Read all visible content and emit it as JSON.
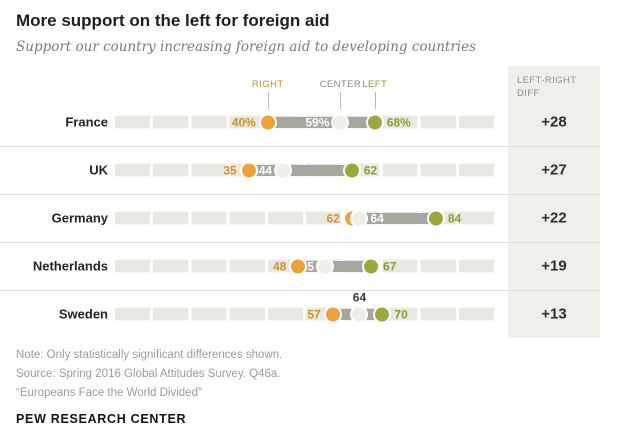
{
  "header": {
    "title": "More support on the left for foreign aid",
    "subtitle": "Support our country increasing foreign aid to developing countries"
  },
  "diff_header": {
    "line1": "LEFT-RIGHT",
    "line2": "DIFF"
  },
  "legend": {
    "right": "RIGHT",
    "center": "CENTER",
    "left": "LEFT"
  },
  "colors": {
    "right_dot": "#ECA23B",
    "center_dot": "#EFEDE8",
    "left_dot": "#9DA741",
    "right_text": "#CE8F2C",
    "left_text": "#8D9A31",
    "center_text_on_bar": "#FFFFFF",
    "center_text_outside": "#3C3C3C",
    "connector": "#A6A69F",
    "band_stripe": "#EAE8E2",
    "diff_column_bg": "#F1EFE9",
    "legend_right": "#CE8F2C",
    "legend_center": "#8A8A84",
    "legend_left": "#8D9A31"
  },
  "chart_data": {
    "type": "dot-plot",
    "title": "More support on the left for foreign aid",
    "subtitle": "Support our country increasing foreign aid to developing countries",
    "scale": [
      0,
      100
    ],
    "categories": [
      "France",
      "UK",
      "Germany",
      "Netherlands",
      "Sweden"
    ],
    "series": [
      {
        "name": "Right",
        "values": [
          40,
          35,
          62,
          48,
          57
        ]
      },
      {
        "name": "Center",
        "values": [
          59,
          44,
          64,
          55,
          64
        ]
      },
      {
        "name": "Left",
        "values": [
          68,
          62,
          84,
          67,
          70
        ]
      }
    ],
    "value_labels": {
      "right": [
        "40%",
        "35",
        "62",
        "48",
        "57"
      ],
      "center": [
        "59%",
        "44",
        "64",
        "55",
        "64"
      ],
      "left": [
        "68%",
        "62",
        "84",
        "67",
        "70"
      ]
    },
    "diff_label": "LEFT-RIGHT DIFF",
    "diff": [
      "+28",
      "+27",
      "+22",
      "+19",
      "+13"
    ],
    "center_label_side": [
      "left",
      "left",
      "right",
      "left",
      "above"
    ],
    "legend_row": "France"
  },
  "footer": {
    "note": "Note: Only statistically significant differences shown.",
    "source": "Source: Spring 2016 Global Attitudes Survey. Q46a.",
    "report": "“Europeans Face the World Divided”",
    "brand": "PEW RESEARCH CENTER"
  }
}
